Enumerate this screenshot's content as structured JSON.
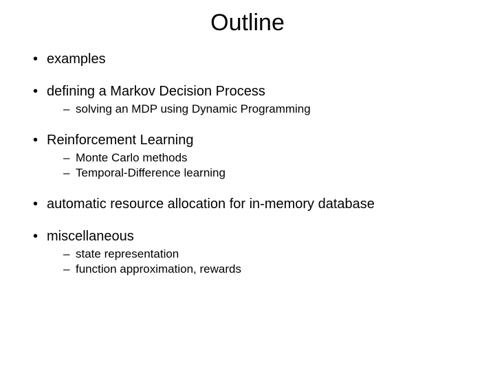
{
  "title": "Outline",
  "items": [
    {
      "text": "examples",
      "sub": []
    },
    {
      "text": "defining a Markov Decision Process",
      "sub": [
        "solving an MDP using Dynamic Programming"
      ]
    },
    {
      "text": "Reinforcement Learning",
      "sub": [
        "Monte Carlo methods",
        "Temporal-Difference learning"
      ]
    },
    {
      "text": "automatic resource allocation for in-memory database",
      "sub": []
    },
    {
      "text": "miscellaneous",
      "sub": [
        "state representation",
        "function approximation, rewards"
      ]
    }
  ],
  "style": {
    "title_fontsize": 34,
    "body_fontsize": 20,
    "sub_fontsize": 17,
    "text_color": "#000000",
    "background_color": "#ffffff",
    "bullet_char": "•",
    "sub_bullet_char": "–"
  }
}
